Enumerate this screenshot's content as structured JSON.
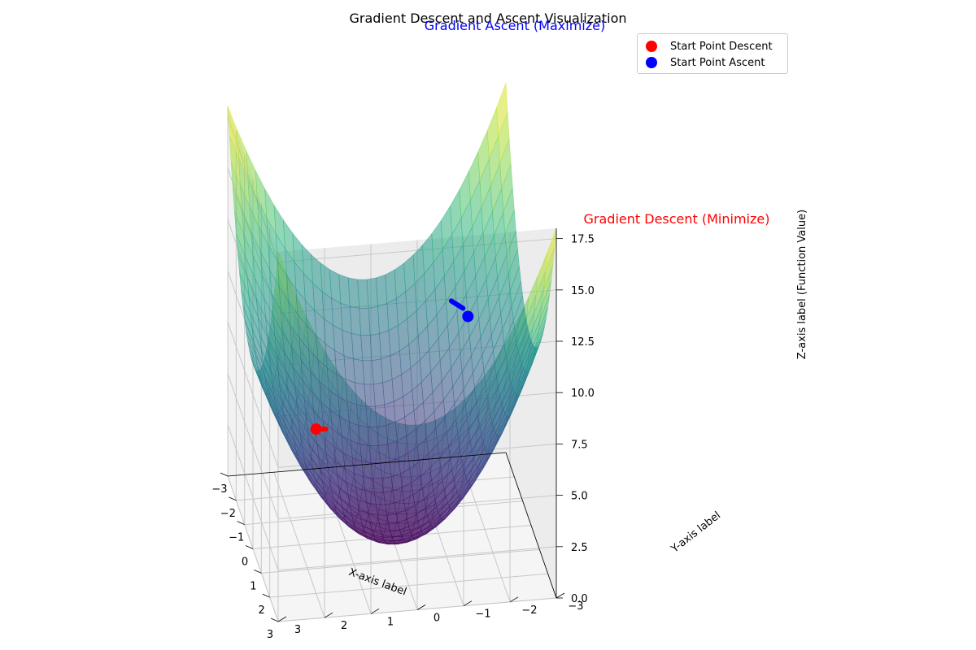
{
  "chart_data": {
    "type": "surface",
    "title": "Gradient Descent and Ascent Visualization",
    "function": "z = x^2 + y^2",
    "xlabel": "X-axis label",
    "ylabel": "Y-axis label",
    "zlabel": "Z-axis label (Function Value)",
    "xlim": [
      -3,
      3
    ],
    "ylim": [
      -3,
      3
    ],
    "zlim": [
      0,
      18
    ],
    "x_ticks": [
      "−3",
      "−2",
      "−1",
      "0",
      "1",
      "2",
      "3"
    ],
    "y_ticks": [
      "−3",
      "−2",
      "−1",
      "0",
      "1",
      "2",
      "3"
    ],
    "z_ticks": [
      "0.0",
      "2.5",
      "5.0",
      "7.5",
      "10.0",
      "12.5",
      "15.0",
      "17.5"
    ],
    "colormap": "viridis",
    "grid": true,
    "legend_position": "top-right",
    "legend": [
      {
        "label": "Start Point Descent",
        "color": "#ff0000"
      },
      {
        "label": "Start Point Ascent",
        "color": "#0000ff"
      }
    ],
    "annotations": [
      {
        "text": "Gradient Descent (Minimize)",
        "color": "#ff0000"
      },
      {
        "text": "Gradient Ascent (Maximize)",
        "color": "#0000ff"
      }
    ],
    "series": [
      {
        "name": "Start Point Descent",
        "color": "#ff0000",
        "x": 2,
        "y": 2,
        "z": 8,
        "path_color": "#ff0000"
      },
      {
        "name": "Start Point Ascent",
        "color": "#0000ff",
        "x": -2,
        "y": -2,
        "z": 8,
        "path_color": "#0000ff"
      }
    ]
  }
}
